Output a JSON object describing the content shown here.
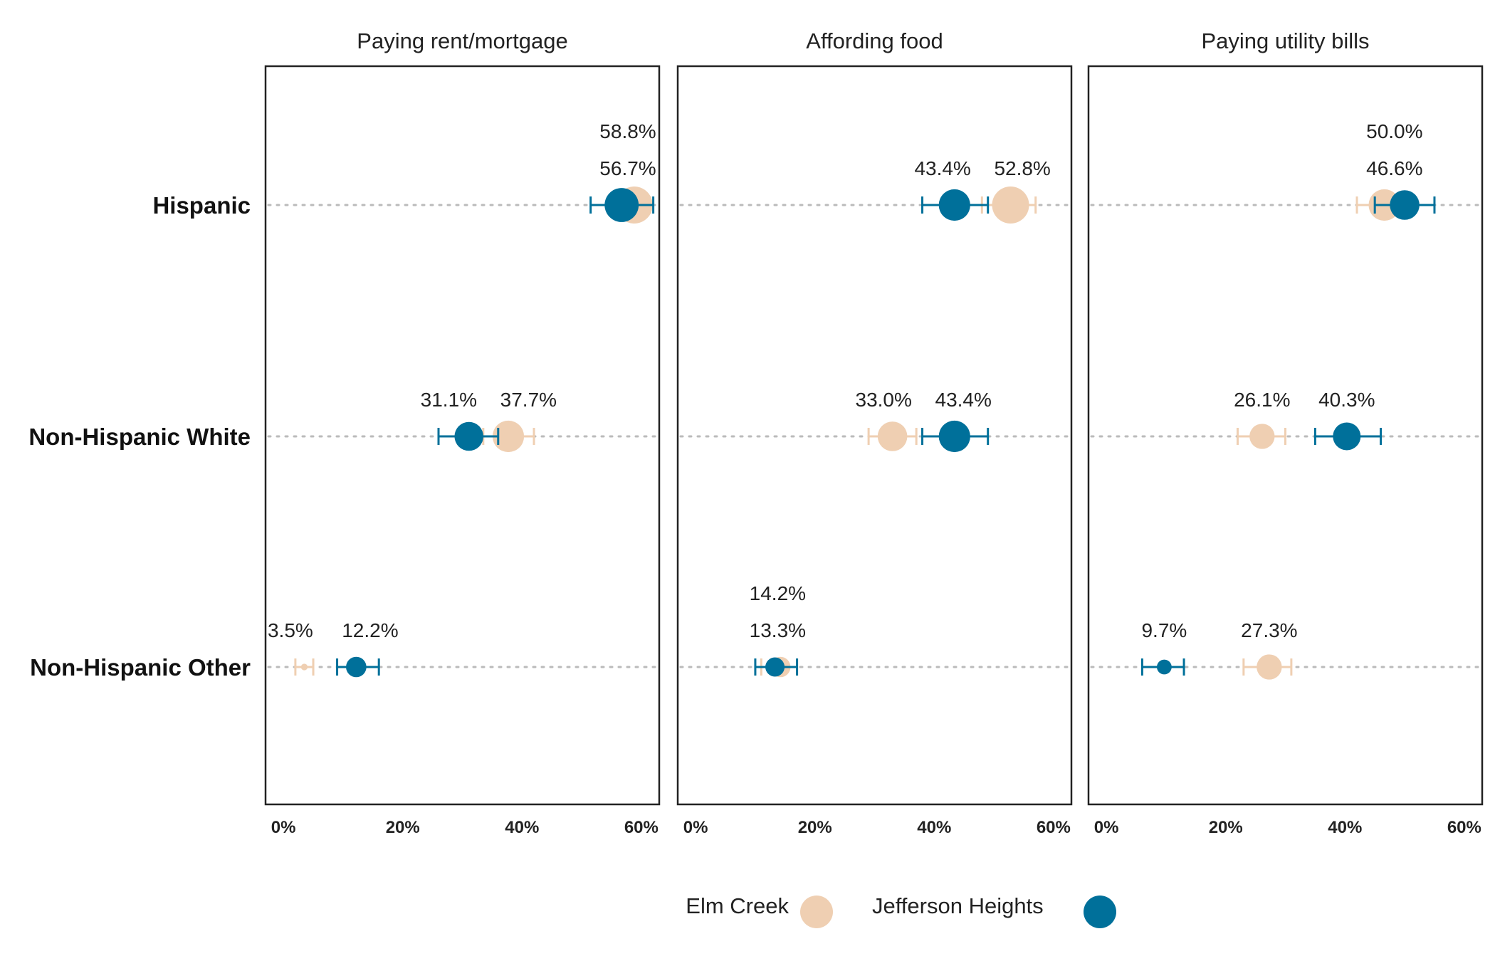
{
  "chart_data": {
    "type": "dot-errorbar",
    "x_ticks": [
      "0%",
      "20%",
      "40%",
      "60%"
    ],
    "xlim": [
      -3,
      63
    ],
    "categories": [
      "Hispanic",
      "Non-Hispanic White",
      "Non-Hispanic Other"
    ],
    "series_order": [
      "Elm Creek",
      "Jefferson Heights"
    ],
    "colors": {
      "Elm Creek": "#efcfb2",
      "Jefferson Heights": "#00709a",
      "frame": "#222222",
      "guide": "#bbbbbb"
    },
    "legend": {
      "position": "bottom",
      "items": [
        "Elm Creek",
        "Jefferson Heights"
      ]
    },
    "facets": [
      {
        "title": "Paying rent/mortgage",
        "points": [
          {
            "category": "Hispanic",
            "series": "Elm Creek",
            "value": 58.8,
            "label": "58.8%",
            "low": 56.0,
            "high": 61.5,
            "size": 1.0
          },
          {
            "category": "Hispanic",
            "series": "Jefferson Heights",
            "value": 56.7,
            "label": "56.7%",
            "low": 51.5,
            "high": 62.0,
            "size": 0.92
          },
          {
            "category": "Non-Hispanic White",
            "series": "Elm Creek",
            "value": 37.7,
            "label": "37.7%",
            "low": 33.5,
            "high": 42.0,
            "size": 0.85
          },
          {
            "category": "Non-Hispanic White",
            "series": "Jefferson Heights",
            "value": 31.1,
            "label": "31.1%",
            "low": 26.0,
            "high": 36.0,
            "size": 0.78
          },
          {
            "category": "Non-Hispanic Other",
            "series": "Elm Creek",
            "value": 3.5,
            "label": "3.5%",
            "low": 2.0,
            "high": 5.0,
            "size": 0.18
          },
          {
            "category": "Non-Hispanic Other",
            "series": "Jefferson Heights",
            "value": 12.2,
            "label": "12.2%",
            "low": 9.0,
            "high": 16.0,
            "size": 0.55
          }
        ]
      },
      {
        "title": "Affording food",
        "points": [
          {
            "category": "Hispanic",
            "series": "Elm Creek",
            "value": 52.8,
            "label": "52.8%",
            "low": 48.0,
            "high": 57.0,
            "size": 1.0
          },
          {
            "category": "Hispanic",
            "series": "Jefferson Heights",
            "value": 43.4,
            "label": "43.4%",
            "low": 38.0,
            "high": 49.0,
            "size": 0.85
          },
          {
            "category": "Non-Hispanic White",
            "series": "Elm Creek",
            "value": 33.0,
            "label": "33.0%",
            "low": 29.0,
            "high": 37.0,
            "size": 0.8
          },
          {
            "category": "Non-Hispanic White",
            "series": "Jefferson Heights",
            "value": 43.4,
            "label": "43.4%",
            "low": 38.0,
            "high": 49.0,
            "size": 0.85
          },
          {
            "category": "Non-Hispanic Other",
            "series": "Elm Creek",
            "value": 14.2,
            "label": "14.2%",
            "low": 11.0,
            "high": 17.0,
            "size": 0.55
          },
          {
            "category": "Non-Hispanic Other",
            "series": "Jefferson Heights",
            "value": 13.3,
            "label": "13.3%",
            "low": 10.0,
            "high": 17.0,
            "size": 0.52
          }
        ]
      },
      {
        "title": "Paying utility bills",
        "points": [
          {
            "category": "Hispanic",
            "series": "Elm Creek",
            "value": 46.6,
            "label": "46.6%",
            "low": 42.0,
            "high": 51.0,
            "size": 0.85
          },
          {
            "category": "Hispanic",
            "series": "Jefferson Heights",
            "value": 50.0,
            "label": "50.0%",
            "low": 45.0,
            "high": 55.0,
            "size": 0.8
          },
          {
            "category": "Non-Hispanic White",
            "series": "Elm Creek",
            "value": 26.1,
            "label": "26.1%",
            "low": 22.0,
            "high": 30.0,
            "size": 0.68
          },
          {
            "category": "Non-Hispanic White",
            "series": "Jefferson Heights",
            "value": 40.3,
            "label": "40.3%",
            "low": 35.0,
            "high": 46.0,
            "size": 0.75
          },
          {
            "category": "Non-Hispanic Other",
            "series": "Elm Creek",
            "value": 27.3,
            "label": "27.3%",
            "low": 23.0,
            "high": 31.0,
            "size": 0.68
          },
          {
            "category": "Non-Hispanic Other",
            "series": "Jefferson Heights",
            "value": 9.7,
            "label": "9.7%",
            "low": 6.0,
            "high": 13.0,
            "size": 0.4
          }
        ]
      }
    ]
  }
}
